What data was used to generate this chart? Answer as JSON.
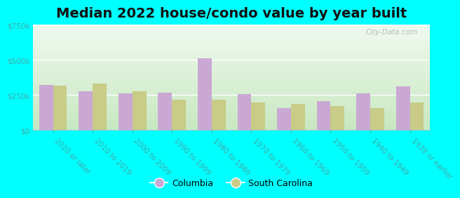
{
  "title": "Median 2022 house/condo value by year built",
  "categories": [
    "2020 or later",
    "2010 to 2019",
    "2000 to 2009",
    "1990 to 1999",
    "1980 to 1989",
    "1970 to 1979",
    "1960 to 1969",
    "1950 to 1959",
    "1940 to 1949",
    "1939 or earlier"
  ],
  "columbia_values": [
    320000,
    275000,
    260000,
    265000,
    510000,
    255000,
    155000,
    205000,
    260000,
    310000
  ],
  "sc_values": [
    315000,
    330000,
    275000,
    215000,
    215000,
    195000,
    185000,
    170000,
    155000,
    195000
  ],
  "columbia_color": "#c9a8d4",
  "sc_color": "#c8cc87",
  "bg_color": "#00ffff",
  "ylim": [
    0,
    750000
  ],
  "yticks": [
    0,
    250000,
    500000,
    750000
  ],
  "bar_width": 0.35,
  "title_fontsize": 14,
  "tick_fontsize": 7.5,
  "legend_fontsize": 9,
  "axis_label_color": "#44aaaa",
  "watermark": "City-Data.com"
}
